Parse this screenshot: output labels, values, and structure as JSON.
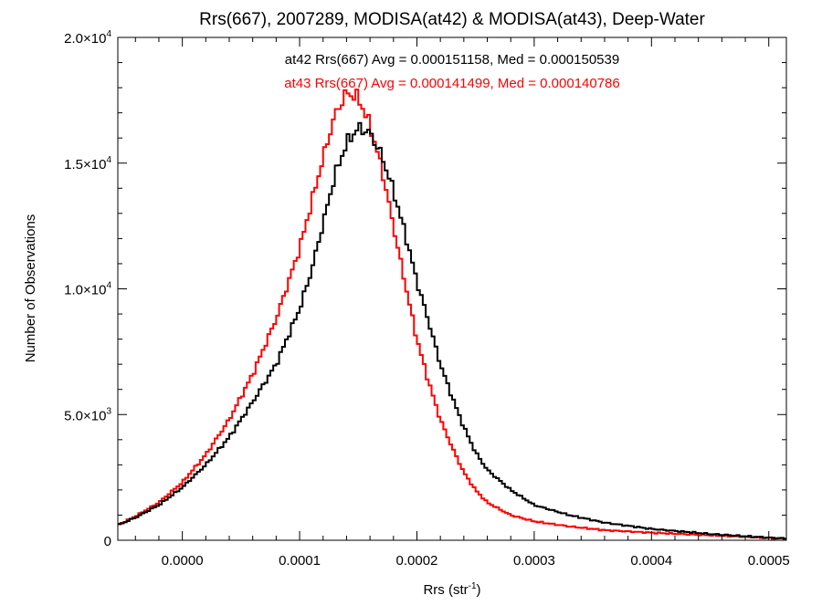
{
  "chart_data": {
    "type": "line",
    "step": true,
    "title": "Rrs(667), 2007289, MODISA(at42) & MODISA(at43), Deep-Water",
    "xlabel_main": "Rrs (str",
    "xlabel_sup": "-1",
    "xlabel_close": ")",
    "ylabel": "Number of Observations",
    "xlim": [
      -5.5e-05,
      0.000515
    ],
    "ylim": [
      0,
      20000
    ],
    "x_ticks": [
      {
        "value": 0.0,
        "label": "0.0000"
      },
      {
        "value": 0.0001,
        "label": "0.0001"
      },
      {
        "value": 0.0002,
        "label": "0.0002"
      },
      {
        "value": 0.0003,
        "label": "0.0003"
      },
      {
        "value": 0.0004,
        "label": "0.0004"
      },
      {
        "value": 0.0005,
        "label": "0.0005"
      }
    ],
    "y_ticks": [
      {
        "value": 0,
        "base": "0",
        "exp": ""
      },
      {
        "value": 5000,
        "base": "5.0×10",
        "exp": "3"
      },
      {
        "value": 10000,
        "base": "1.0×10",
        "exp": "4"
      },
      {
        "value": 15000,
        "base": "1.5×10",
        "exp": "4"
      },
      {
        "value": 20000,
        "base": "2.0×10",
        "exp": "4"
      }
    ],
    "annotations": [
      {
        "text": "at42 Rrs(667) Avg = 0.000151158, Med = 0.000150539",
        "color": "#000000"
      },
      {
        "text": "at43 Rrs(667) Avg = 0.000141499, Med = 0.000140786",
        "color": "#ff0000"
      }
    ],
    "series": [
      {
        "color": "#000000",
        "x": [
          -5.5e-05,
          -4e-05,
          -2e-05,
          0.0,
          2e-05,
          4e-05,
          6e-05,
          8e-05,
          0.0001,
          0.00011,
          0.00012,
          0.00013,
          0.00014,
          0.00015,
          0.00016,
          0.00017,
          0.00018,
          0.00019,
          0.0002,
          0.00021,
          0.00022,
          0.00023,
          0.00024,
          0.00025,
          0.00026,
          0.00028,
          0.0003,
          0.00033,
          0.00036,
          0.0004,
          0.00045,
          0.0005,
          0.000515
        ],
        "y": [
          600,
          900,
          1400,
          2100,
          3000,
          4100,
          5500,
          7000,
          9200,
          10700,
          12600,
          14500,
          15800,
          16400,
          16200,
          15300,
          13900,
          12200,
          10300,
          8700,
          7000,
          5700,
          4500,
          3500,
          2800,
          2000,
          1400,
          1000,
          700,
          450,
          250,
          100,
          70
        ]
      },
      {
        "color": "#ff0000",
        "x": [
          -5.5e-05,
          -4e-05,
          -2e-05,
          0.0,
          2e-05,
          4e-05,
          6e-05,
          8e-05,
          0.0001,
          0.00011,
          0.00012,
          0.00013,
          0.00014,
          0.00015,
          0.00016,
          0.00017,
          0.00018,
          0.00019,
          0.0002,
          0.00021,
          0.00022,
          0.00023,
          0.00024,
          0.00025,
          0.00026,
          0.00028,
          0.0003,
          0.00033,
          0.00036,
          0.0004,
          0.00045,
          0.0005,
          0.000515
        ],
        "y": [
          600,
          950,
          1500,
          2300,
          3400,
          4800,
          6600,
          8800,
          11600,
          13400,
          15200,
          16900,
          17800,
          17600,
          16500,
          14800,
          12500,
          10200,
          8000,
          6300,
          4800,
          3700,
          2700,
          2000,
          1500,
          1000,
          750,
          550,
          400,
          300,
          200,
          90,
          60
        ]
      }
    ]
  }
}
